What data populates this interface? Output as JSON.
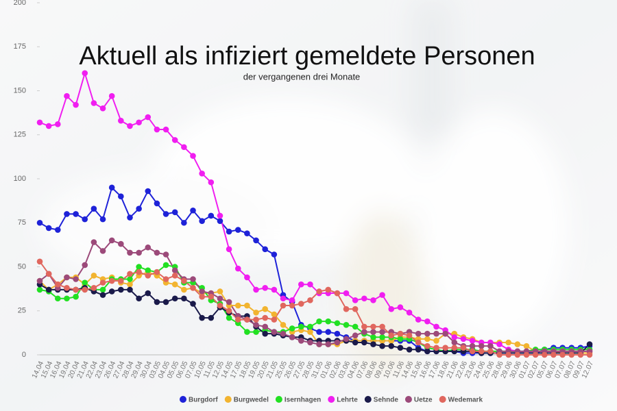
{
  "chart_data": {
    "type": "line",
    "title": "Aktuell als infiziert gemeldete Personen",
    "subtitle": "der vergangenen drei Monate",
    "categories": [
      "14.04",
      "15.04",
      "16.04",
      "19.04",
      "20.04",
      "21.04",
      "22.04",
      "23.04",
      "26.04",
      "27.04",
      "28.04",
      "29.04",
      "30.04",
      "03.05",
      "04.05",
      "05.05",
      "06.05",
      "07.05",
      "10.05",
      "11.05",
      "12.05",
      "14.05",
      "17.05",
      "18.05",
      "19.05",
      "20.05",
      "21.05",
      "25.05",
      "26.05",
      "27.05",
      "28.05",
      "31.05",
      "01.06",
      "02.06",
      "03.06",
      "04.06",
      "07.06",
      "08.06",
      "09.06",
      "10.06",
      "11.06",
      "14.06",
      "15.06",
      "16.06",
      "17.06",
      "18.06",
      "21.06",
      "22.06",
      "23.06",
      "24.06",
      "25.06",
      "28.06",
      "29.06",
      "30.06",
      "01.07",
      "02.07",
      "05.07",
      "06.07",
      "07.07",
      "08.07",
      "09.07",
      "12.07"
    ],
    "series": [
      {
        "name": "Burgdorf",
        "color": "#1e22d8",
        "values": [
          75,
          72,
          71,
          80,
          80,
          77,
          83,
          77,
          95,
          90,
          78,
          83,
          93,
          86,
          80,
          81,
          75,
          82,
          76,
          79,
          76,
          70,
          71,
          69,
          65,
          60,
          57,
          34,
          30,
          17,
          15,
          13,
          13,
          12,
          10,
          8,
          8,
          8,
          8,
          8,
          8,
          8,
          4,
          2,
          2,
          2,
          2,
          1,
          1,
          1,
          1,
          1,
          1,
          1,
          1,
          1,
          3,
          4,
          4,
          4,
          4,
          5
        ]
      },
      {
        "name": "Burgwedel",
        "color": "#f2b430",
        "values": [
          42,
          37,
          40,
          44,
          44,
          40,
          45,
          43,
          44,
          41,
          40,
          45,
          47,
          45,
          41,
          40,
          37,
          38,
          35,
          35,
          36,
          28,
          28,
          28,
          24,
          26,
          23,
          17,
          13,
          14,
          13,
          6,
          6,
          6,
          8,
          8,
          8,
          8,
          8,
          8,
          10,
          10,
          9,
          9,
          8,
          12,
          12,
          10,
          9,
          7,
          7,
          7,
          7,
          6,
          5,
          2,
          2,
          2,
          1,
          1,
          1,
          1
        ]
      },
      {
        "name": "Isernhagen",
        "color": "#22e022",
        "values": [
          37,
          36,
          32,
          32,
          33,
          41,
          37,
          37,
          43,
          43,
          43,
          50,
          48,
          47,
          51,
          50,
          41,
          41,
          38,
          31,
          29,
          21,
          18,
          13,
          13,
          14,
          13,
          13,
          15,
          16,
          16,
          19,
          19,
          18,
          17,
          16,
          12,
          10,
          10,
          10,
          9,
          9,
          7,
          4,
          3,
          2,
          3,
          3,
          3,
          2,
          2,
          2,
          2,
          2,
          2,
          3,
          3,
          3,
          3,
          3,
          3,
          3
        ]
      },
      {
        "name": "Lehrte",
        "color": "#f01ef0",
        "values": [
          132,
          130,
          131,
          147,
          142,
          160,
          143,
          140,
          147,
          133,
          130,
          132,
          135,
          128,
          128,
          122,
          118,
          113,
          103,
          98,
          79,
          60,
          49,
          44,
          37,
          38,
          37,
          32,
          31,
          40,
          40,
          35,
          35,
          35,
          35,
          31,
          32,
          31,
          34,
          26,
          27,
          24,
          20,
          19,
          16,
          14,
          10,
          9,
          8,
          7,
          7,
          6,
          3,
          2,
          2,
          2,
          2,
          2,
          2,
          2,
          2,
          2
        ]
      },
      {
        "name": "Sehnde",
        "color": "#1a1a4a",
        "values": [
          40,
          37,
          37,
          37,
          37,
          38,
          36,
          34,
          36,
          37,
          37,
          32,
          35,
          30,
          30,
          32,
          32,
          29,
          21,
          21,
          27,
          24,
          22,
          22,
          16,
          12,
          12,
          11,
          10,
          10,
          8,
          8,
          8,
          8,
          8,
          7,
          7,
          6,
          5,
          5,
          4,
          3,
          3,
          2,
          2,
          2,
          2,
          2,
          2,
          1,
          1,
          1,
          1,
          1,
          1,
          1,
          1,
          1,
          1,
          1,
          1,
          6
        ]
      },
      {
        "name": "Uetze",
        "color": "#9c4a7a",
        "values": [
          42,
          46,
          38,
          44,
          43,
          51,
          64,
          59,
          65,
          63,
          58,
          58,
          61,
          58,
          57,
          48,
          43,
          43,
          36,
          35,
          32,
          30,
          22,
          20,
          17,
          16,
          13,
          12,
          10,
          8,
          7,
          6,
          6,
          7,
          9,
          11,
          13,
          13,
          13,
          13,
          12,
          13,
          12,
          12,
          12,
          12,
          7,
          5,
          5,
          5,
          5,
          2,
          2,
          2,
          2,
          2,
          2,
          2,
          2,
          2,
          2,
          2
        ]
      },
      {
        "name": "Wedemark",
        "color": "#e0675e",
        "values": [
          53,
          46,
          40,
          38,
          37,
          37,
          38,
          41,
          42,
          42,
          46,
          47,
          45,
          47,
          43,
          45,
          42,
          38,
          33,
          33,
          28,
          25,
          20,
          20,
          20,
          21,
          20,
          28,
          28,
          29,
          31,
          36,
          37,
          35,
          26,
          26,
          16,
          16,
          16,
          11,
          12,
          11,
          7,
          5,
          4,
          4,
          4,
          4,
          2,
          2,
          2,
          0,
          0,
          0,
          0,
          0,
          0,
          0,
          0,
          0,
          0,
          0
        ]
      }
    ],
    "ylim": [
      0,
      200
    ],
    "yticks": [
      0,
      25,
      50,
      75,
      100,
      125,
      150,
      175,
      200
    ],
    "grid": false,
    "legend": "bottom"
  }
}
